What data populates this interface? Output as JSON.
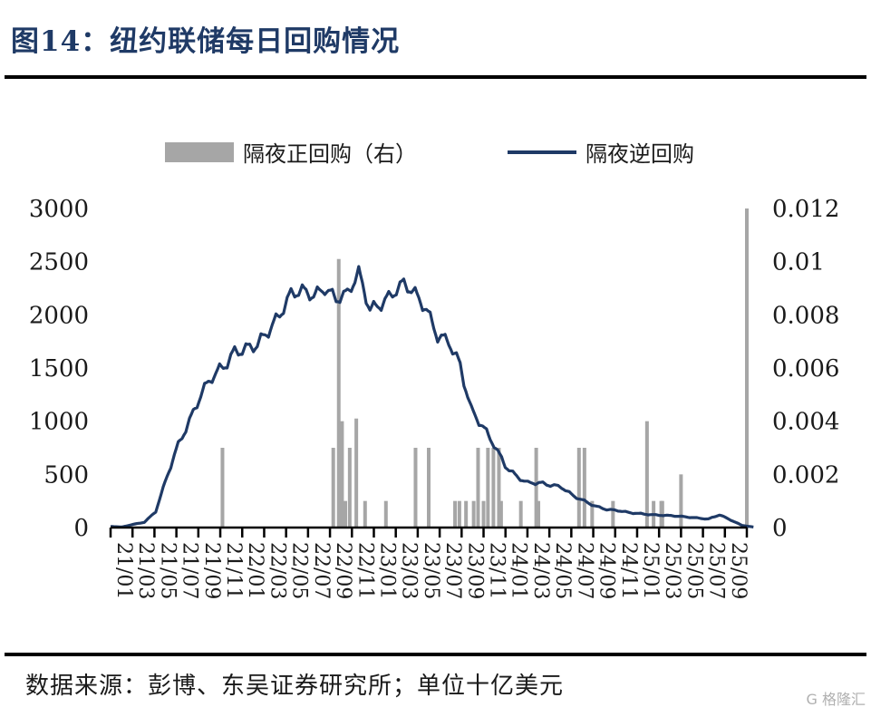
{
  "title": "图14：纽约联储每日回购情况",
  "source": "数据来源：彭博、东吴证券研究所；单位十亿美元",
  "watermark": "G 格隆汇",
  "colors": {
    "line": "#1f3a66",
    "bar": "#a6a6a6",
    "axis": "#000000",
    "title": "#1f3a66"
  },
  "chart_data": {
    "type": "bar+line",
    "legend": [
      "隔夜正回购（右）",
      "隔夜逆回购"
    ],
    "x_tick_labels": [
      "21/01",
      "21/03",
      "21/05",
      "21/07",
      "21/09",
      "21/11",
      "22/01",
      "22/03",
      "22/05",
      "22/07",
      "22/09",
      "22/11",
      "23/01",
      "23/03",
      "23/05",
      "23/07",
      "23/09",
      "23/11",
      "24/01",
      "24/03",
      "24/05",
      "24/07",
      "24/09",
      "24/11",
      "25/01",
      "25/03",
      "25/05",
      "25/07",
      "25/09"
    ],
    "y_left": {
      "label": "隔夜逆回购",
      "ylim": [
        0,
        3000
      ],
      "ticks": [
        "3000",
        "2500",
        "2000",
        "1500",
        "1000",
        "500",
        "0"
      ],
      "tick_values": [
        3000,
        2500,
        2000,
        1500,
        1000,
        500,
        0
      ]
    },
    "y_right": {
      "label": "隔夜正回购（右）",
      "ylim": [
        0,
        0.012
      ],
      "ticks": [
        "0.012",
        "0.01",
        "0.008",
        "0.006",
        "0.004",
        "0.002",
        "0"
      ],
      "tick_values": [
        0.012,
        0.01,
        0.008,
        0.006,
        0.004,
        0.002,
        0
      ]
    },
    "series": [
      {
        "name": "隔夜逆回购",
        "type": "line",
        "axis": "left",
        "x": [
          0,
          1,
          2,
          3,
          4,
          5,
          6,
          7,
          8,
          9,
          10,
          11,
          12,
          13,
          14,
          15,
          16,
          17,
          18,
          19,
          20,
          21,
          22,
          23,
          24,
          25,
          26,
          27,
          28,
          29,
          30,
          31,
          32,
          33,
          34,
          35,
          36,
          37,
          38,
          39,
          40,
          41,
          42,
          43,
          44,
          45,
          46,
          47,
          48,
          49,
          50,
          51,
          52,
          53,
          54,
          55,
          56,
          57
        ],
        "values": [
          10,
          5,
          30,
          50,
          150,
          480,
          780,
          1000,
          1250,
          1420,
          1510,
          1650,
          1680,
          1720,
          1850,
          2000,
          2200,
          2230,
          2180,
          2250,
          2150,
          2200,
          2400,
          2050,
          2100,
          2200,
          2300,
          2200,
          2050,
          1800,
          1750,
          1520,
          1100,
          950,
          780,
          580,
          480,
          420,
          420,
          400,
          380,
          300,
          250,
          200,
          170,
          160,
          140,
          130,
          120,
          115,
          110,
          100,
          90,
          80,
          120,
          70,
          20,
          5
        ]
      },
      {
        "name": "隔夜正回购（右）",
        "type": "bar",
        "axis": "right",
        "x": [
          5.1,
          10.15,
          10.4,
          10.55,
          10.7,
          10.9,
          11.2,
          11.6,
          12.55,
          13.9,
          14.5,
          15.7,
          15.9,
          16.2,
          16.55,
          16.75,
          17.0,
          17.2,
          17.45,
          17.7,
          17.8,
          18.7,
          19.4,
          19.5,
          21.35,
          21.6,
          21.95,
          22.9,
          24.45,
          24.75,
          25.1,
          25.15,
          26.0,
          29.0
        ],
        "values": [
          0.003,
          0.003,
          0.0101,
          0.004,
          0.001,
          0.003,
          0.0041,
          0.001,
          0.001,
          0.003,
          0.003,
          0.001,
          0.001,
          0.001,
          0.001,
          0.003,
          0.001,
          0.003,
          0.003,
          0.003,
          0.001,
          0.001,
          0.003,
          0.001,
          0.003,
          0.003,
          0.001,
          0.001,
          0.004,
          0.001,
          0.001,
          0.001,
          0.002,
          0.012
        ]
      }
    ]
  }
}
